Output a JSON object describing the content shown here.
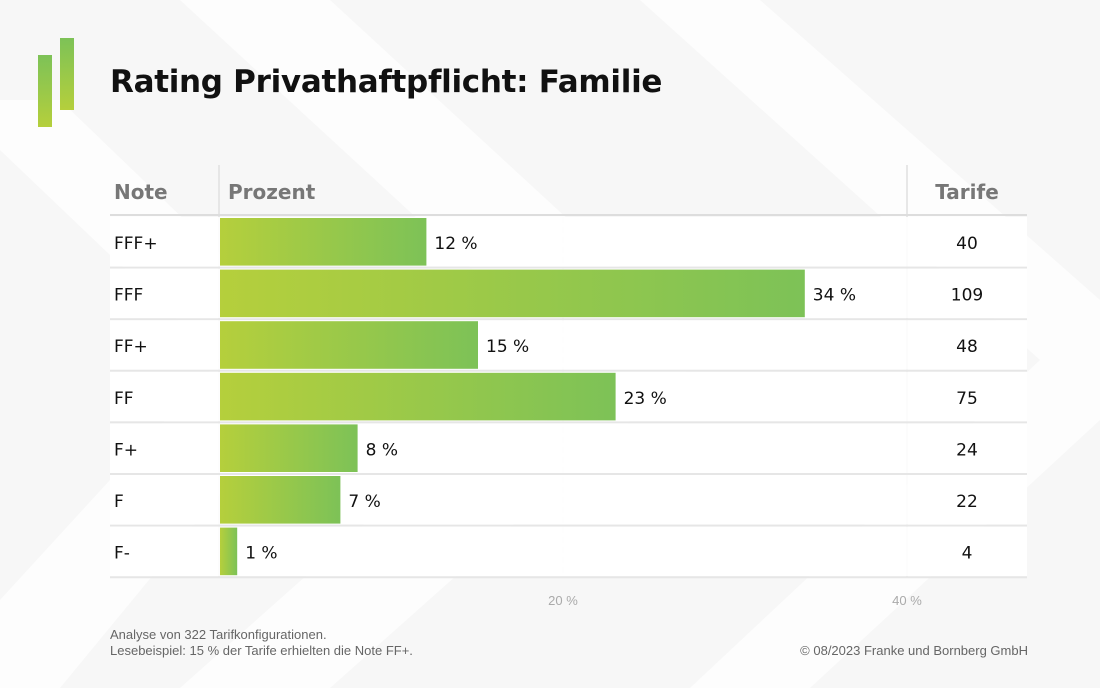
{
  "title": "Rating Privathaftpflicht: Familie",
  "chart_data": {
    "type": "bar",
    "orientation": "horizontal",
    "columns": {
      "note": "Note",
      "percent": "Prozent",
      "tariffs": "Tarife"
    },
    "categories": [
      "FFF+",
      "FFF",
      "FF+",
      "FF",
      "F+",
      "F",
      "F-"
    ],
    "values": [
      12,
      34,
      15,
      23,
      8,
      7,
      1
    ],
    "value_labels": [
      "12 %",
      "34 %",
      "15 %",
      "23 %",
      "8 %",
      "7 %",
      "1 %"
    ],
    "tariffs": [
      40,
      109,
      48,
      75,
      24,
      22,
      4
    ],
    "xlim": [
      0,
      40
    ],
    "x_ticks": [
      20,
      40
    ],
    "x_tick_labels": [
      "20 %",
      "40 %"
    ],
    "grid": "dashed at 20 %",
    "bar_gradient": [
      "#b5cf3c",
      "#7dc257"
    ]
  },
  "footer": {
    "note1": "Analyse von 322 Tarifkonfigurationen.",
    "note2": "Lesebeispiel: 15 % der Tarife erhielten die Note FF+.",
    "copyright": "© 08/2023 Franke und Bornberg GmbH"
  }
}
